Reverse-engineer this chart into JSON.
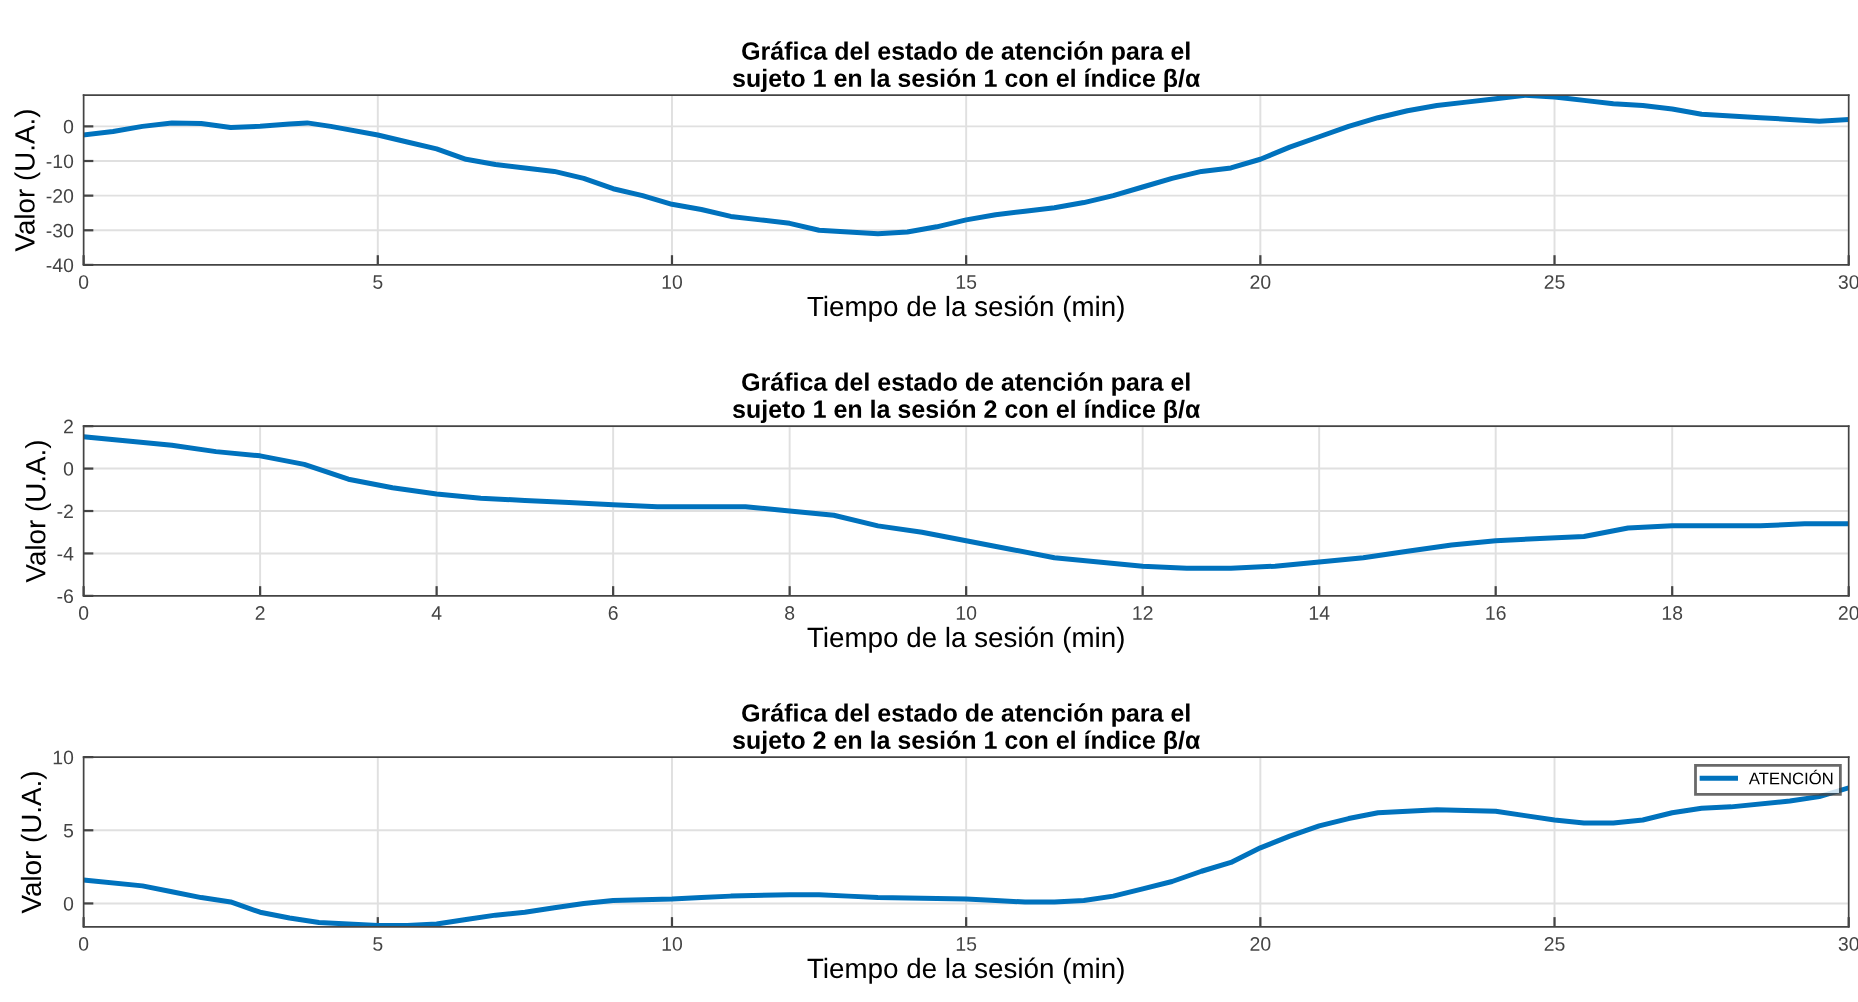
{
  "chart_data": [
    {
      "type": "line",
      "title": "Gráfica del estado de atención para el\nsujeto 1 en la sesión 1 con el índice β/α",
      "xlabel": "Tiempo de la sesión (min)",
      "ylabel": "Valor (U.A.)",
      "xlim": [
        0,
        30
      ],
      "ylim": [
        -40,
        9
      ],
      "xticks": [
        0,
        5,
        10,
        15,
        20,
        25,
        30
      ],
      "yticks": [
        -40,
        -30,
        -20,
        -10,
        0
      ],
      "grid": true,
      "series": [
        {
          "color": "#0072bd",
          "x": [
            0,
            0.5,
            1,
            1.5,
            2,
            2.5,
            3,
            3.5,
            3.8,
            4.2,
            5,
            5.5,
            6,
            6.5,
            7,
            7.5,
            8,
            8.5,
            9,
            9.5,
            10,
            10.5,
            11,
            11.5,
            12,
            12.5,
            13,
            13.5,
            14,
            14.5,
            15,
            15.5,
            16,
            16.5,
            17,
            17.5,
            18,
            18.5,
            19,
            19.5,
            20,
            20.5,
            21,
            21.5,
            22,
            22.5,
            23,
            23.5,
            24,
            24.5,
            25,
            25.5,
            26,
            26.5,
            27,
            27.5,
            28,
            28.5,
            29,
            29.5,
            30
          ],
          "values": [
            -2.5,
            -1.5,
            0,
            1,
            0.8,
            -0.3,
            0,
            0.7,
            1,
            0,
            -2.5,
            -4.5,
            -6.5,
            -9.5,
            -11,
            -12,
            -13,
            -15,
            -18,
            -20,
            -22.5,
            -24,
            -26,
            -27,
            -28,
            -30,
            -30.5,
            -31,
            -30.5,
            -29,
            -27,
            -25.5,
            -24.5,
            -23.5,
            -22,
            -20,
            -17.5,
            -15,
            -13,
            -12,
            -9.5,
            -6,
            -3,
            0,
            2.5,
            4.5,
            6,
            7,
            8,
            9,
            8.5,
            7.5,
            6.5,
            6,
            5,
            3.5,
            3,
            2.5,
            2,
            1.5,
            2
          ]
        }
      ]
    },
    {
      "type": "line",
      "title": "Gráfica del estado de atención para el\nsujeto 1 en la sesión 2 con el índice β/α",
      "xlabel": "Tiempo de la sesión (min)",
      "ylabel": "Valor (U.A.)",
      "xlim": [
        0,
        20
      ],
      "ylim": [
        -6,
        2
      ],
      "xticks": [
        0,
        2,
        4,
        6,
        8,
        10,
        12,
        14,
        16,
        18,
        20
      ],
      "yticks": [
        -6,
        -4,
        -2,
        0,
        2
      ],
      "grid": true,
      "series": [
        {
          "color": "#0072bd",
          "x": [
            0,
            0.5,
            1,
            1.5,
            2,
            2.5,
            3,
            3.5,
            4,
            4.5,
            5,
            5.5,
            6,
            6.5,
            7,
            7.5,
            8,
            8.5,
            9,
            9.5,
            10,
            10.5,
            11,
            11.5,
            12,
            12.5,
            13,
            13.5,
            14,
            14.5,
            15,
            15.5,
            16,
            16.5,
            17,
            17.5,
            18,
            18.5,
            19,
            19.5,
            20
          ],
          "values": [
            1.5,
            1.3,
            1.1,
            0.8,
            0.6,
            0.2,
            -0.5,
            -0.9,
            -1.2,
            -1.4,
            -1.5,
            -1.6,
            -1.7,
            -1.8,
            -1.8,
            -1.8,
            -2.0,
            -2.2,
            -2.7,
            -3.0,
            -3.4,
            -3.8,
            -4.2,
            -4.4,
            -4.6,
            -4.7,
            -4.7,
            -4.6,
            -4.4,
            -4.2,
            -3.9,
            -3.6,
            -3.4,
            -3.3,
            -3.2,
            -2.8,
            -2.7,
            -2.7,
            -2.7,
            -2.6,
            -2.6
          ]
        }
      ]
    },
    {
      "type": "line",
      "title": "Gráfica del estado de atención para el\nsujeto 2 en la sesión 1 con el índice β/α",
      "xlabel": "Tiempo de la sesión (min)",
      "ylabel": "Valor (U.A.)",
      "xlim": [
        0,
        30
      ],
      "ylim": [
        -1.6,
        10
      ],
      "xticks": [
        0,
        5,
        10,
        15,
        20,
        25,
        30
      ],
      "yticks": [
        0,
        5,
        10
      ],
      "grid": true,
      "legend": "top right",
      "series": [
        {
          "name": "ATENCIÓN",
          "color": "#0072bd",
          "x": [
            0,
            1,
            1.5,
            2,
            2.5,
            3,
            3.5,
            4,
            4.5,
            5,
            5.5,
            6,
            6.5,
            7,
            7.5,
            8,
            8.5,
            9,
            10,
            10.5,
            11,
            12,
            12.5,
            13,
            13.5,
            15,
            15.5,
            16,
            16.5,
            17,
            17.5,
            18,
            18.5,
            19,
            19.5,
            20,
            20.5,
            21,
            21.5,
            22,
            23,
            24,
            24.5,
            25,
            25.5,
            26,
            26.5,
            27,
            27.5,
            28,
            29,
            29.5,
            30
          ],
          "values": [
            1.6,
            1.2,
            0.8,
            0.4,
            0.1,
            -0.6,
            -1.0,
            -1.3,
            -1.4,
            -1.5,
            -1.5,
            -1.4,
            -1.1,
            -0.8,
            -0.6,
            -0.3,
            0,
            0.2,
            0.3,
            0.4,
            0.5,
            0.6,
            0.6,
            0.5,
            0.4,
            0.3,
            0.2,
            0.1,
            0.1,
            0.2,
            0.5,
            1.0,
            1.5,
            2.2,
            2.8,
            3.8,
            4.6,
            5.3,
            5.8,
            6.2,
            6.4,
            6.3,
            6.0,
            5.7,
            5.5,
            5.5,
            5.7,
            6.2,
            6.5,
            6.6,
            7.0,
            7.3,
            7.9
          ]
        }
      ]
    }
  ]
}
